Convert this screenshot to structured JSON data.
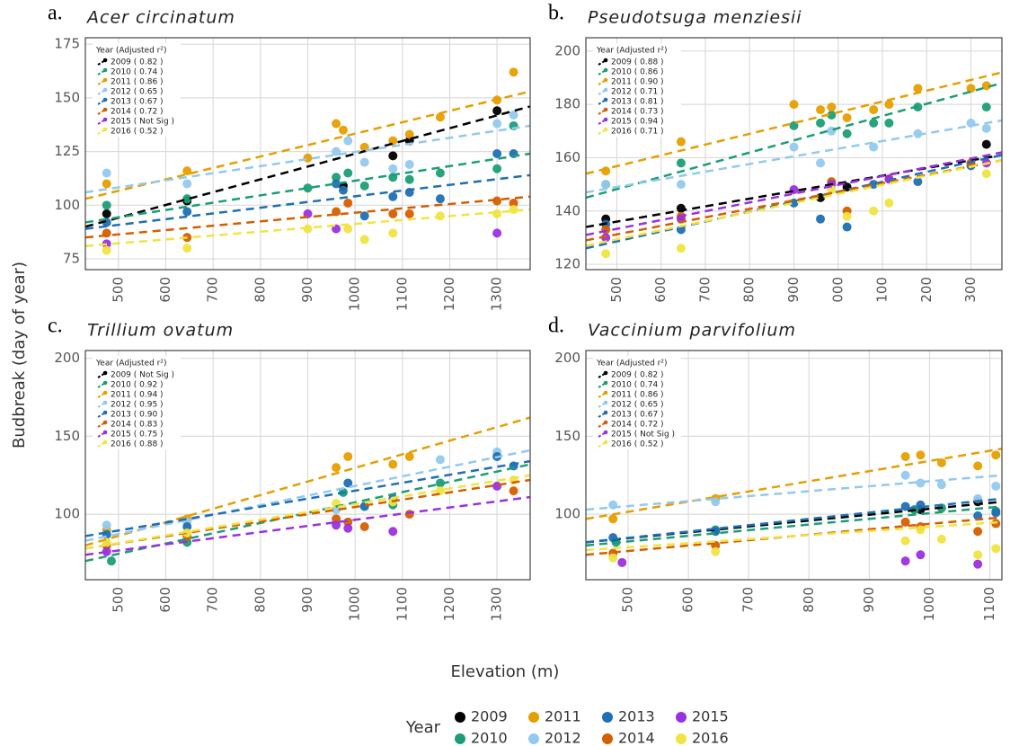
{
  "y_label": "Budbreak (day of year)",
  "x_label": "Elevation (m)",
  "legend": {
    "title": "Year",
    "items": [
      {
        "name": "2009",
        "color": "#000000"
      },
      {
        "name": "2010",
        "color": "#1b9e77"
      },
      {
        "name": "2011",
        "color": "#e69f00"
      },
      {
        "name": "2012",
        "color": "#93c9ee"
      },
      {
        "name": "2013",
        "color": "#1f6fb4"
      },
      {
        "name": "2014",
        "color": "#d55e00"
      },
      {
        "name": "2015",
        "color": "#9b30e0"
      },
      {
        "name": "2016",
        "color": "#f0e442"
      }
    ]
  },
  "chart_data": [
    {
      "type": "scatter",
      "panel_label": "a.",
      "title": "Acer circinatum",
      "legend_title": "Year (Adjusted r²)",
      "xlim": [
        430,
        1370
      ],
      "xticks": [
        500,
        600,
        700,
        800,
        900,
        1000,
        1100,
        1200,
        1300
      ],
      "ylim": [
        70,
        178
      ],
      "yticks": [
        75,
        100,
        125,
        150,
        175
      ],
      "grid": true,
      "series": [
        {
          "name": "2009 ( 0.82 )",
          "color": "#000000",
          "x": [
            475,
            645,
            975,
            1080,
            1115,
            1300
          ],
          "values": [
            96,
            102,
            109,
            123,
            130,
            144
          ],
          "fit": [
            90,
            146
          ]
        },
        {
          "name": "2010 ( 0.74 )",
          "color": "#1b9e77",
          "x": [
            475,
            645,
            900,
            960,
            985,
            1020,
            1080,
            1115,
            1180,
            1300,
            1335
          ],
          "values": [
            100,
            103,
            108,
            113,
            115,
            109,
            113,
            112,
            115,
            117,
            137
          ],
          "fit": [
            92,
            124
          ]
        },
        {
          "name": "2011 ( 0.86 )",
          "color": "#e69f00",
          "x": [
            475,
            645,
            900,
            960,
            975,
            1020,
            1080,
            1115,
            1180,
            1300,
            1335
          ],
          "values": [
            110,
            116,
            122,
            138,
            135,
            127,
            130,
            133,
            141,
            149,
            162
          ],
          "fit": [
            103,
            153
          ]
        },
        {
          "name": "2012 ( 0.65 )",
          "color": "#93c9ee",
          "x": [
            475,
            645,
            960,
            985,
            1020,
            1080,
            1115,
            1300,
            1335
          ],
          "values": [
            115,
            110,
            125,
            130,
            120,
            117,
            119,
            138,
            142
          ],
          "fit": [
            106,
            137
          ]
        },
        {
          "name": "2013 ( 0.67 )",
          "color": "#1f6fb4",
          "x": [
            475,
            645,
            960,
            975,
            1020,
            1080,
            1115,
            1180,
            1300,
            1335
          ],
          "values": [
            92,
            97,
            110,
            107,
            95,
            104,
            106,
            103,
            124,
            124
          ],
          "fit": [
            89,
            114
          ]
        },
        {
          "name": "2014 ( 0.72 )",
          "color": "#d55e00",
          "x": [
            475,
            645,
            960,
            985,
            1080,
            1115,
            1300,
            1335
          ],
          "values": [
            87,
            85,
            97,
            101,
            96,
            96,
            102,
            101
          ],
          "fit": [
            85,
            104
          ]
        },
        {
          "name": "2015 ( Not Sig )",
          "color": "#9b30e0",
          "x": [
            475,
            900,
            960,
            1300
          ],
          "values": [
            82,
            96,
            89,
            87
          ],
          "fit": null
        },
        {
          "name": "2016 ( 0.52 )",
          "color": "#f0e442",
          "x": [
            475,
            645,
            900,
            985,
            1020,
            1080,
            1180,
            1300,
            1335
          ],
          "values": [
            79,
            80,
            89,
            89,
            84,
            87,
            95,
            96,
            98
          ],
          "fit": [
            81,
            98
          ]
        }
      ]
    },
    {
      "type": "scatter",
      "panel_label": "b.",
      "title": "Pseudotsuga menziesii",
      "legend_title": "Year (Adjusted r²)",
      "xlim": [
        430,
        1370
      ],
      "xticks": [
        500,
        600,
        700,
        800,
        900,
        {
          "value": 1000,
          "label": "000"
        },
        {
          "value": 1100,
          "label": "100"
        },
        {
          "value": 1200,
          "label": "200"
        },
        {
          "value": 1300,
          "label": "300"
        }
      ],
      "ylim": [
        118,
        205
      ],
      "yticks": [
        120,
        140,
        160,
        180,
        200
      ],
      "grid": true,
      "series": [
        {
          "name": "2009 ( 0.88 )",
          "color": "#000000",
          "x": [
            475,
            645,
            960,
            1020,
            1335
          ],
          "values": [
            137,
            141,
            145,
            149,
            165
          ],
          "fit": [
            134,
            161
          ]
        },
        {
          "name": "2010 ( 0.86 )",
          "color": "#1b9e77",
          "x": [
            475,
            645,
            900,
            960,
            985,
            1020,
            1080,
            1115,
            1180,
            1335
          ],
          "values": [
            150,
            158,
            172,
            173,
            176,
            169,
            173,
            173,
            179,
            179
          ],
          "fit": [
            145,
            188
          ]
        },
        {
          "name": "2011 ( 0.90 )",
          "color": "#e69f00",
          "x": [
            475,
            645,
            900,
            960,
            985,
            1020,
            1080,
            1115,
            1180,
            1300,
            1335
          ],
          "values": [
            155,
            166,
            180,
            178,
            179,
            175,
            178,
            180,
            186,
            186,
            187
          ],
          "fit": [
            154,
            192
          ]
        },
        {
          "name": "2012 ( 0.71 )",
          "color": "#93c9ee",
          "x": [
            475,
            645,
            900,
            960,
            985,
            1080,
            1180,
            1300,
            1335
          ],
          "values": [
            150,
            150,
            164,
            158,
            170,
            164,
            169,
            173,
            171
          ],
          "fit": [
            147,
            174
          ]
        },
        {
          "name": "2013 ( 0.81 )",
          "color": "#1f6fb4",
          "x": [
            475,
            645,
            900,
            960,
            1020,
            1080,
            1180,
            1300
          ],
          "values": [
            135,
            133,
            143,
            137,
            134,
            150,
            151,
            157
          ],
          "fit": [
            126,
            161
          ]
        },
        {
          "name": "2014 ( 0.73 )",
          "color": "#d55e00",
          "x": [
            475,
            645,
            985,
            1020,
            1115,
            1300
          ],
          "values": [
            133,
            138,
            151,
            140,
            152,
            158
          ],
          "fit": [
            129,
            159
          ]
        },
        {
          "name": "2015 ( 0.94 )",
          "color": "#9b30e0",
          "x": [
            475,
            645,
            900,
            985,
            1115,
            1335
          ],
          "values": [
            130,
            137,
            148,
            150,
            152,
            158
          ],
          "fit": [
            131,
            162
          ]
        },
        {
          "name": "2016 ( 0.71 )",
          "color": "#f0e442",
          "x": [
            475,
            645,
            985,
            1020,
            1080,
            1115,
            1335
          ],
          "values": [
            124,
            126,
            148,
            138,
            140,
            143,
            154
          ],
          "fit": [
            127,
            159
          ]
        }
      ]
    },
    {
      "type": "scatter",
      "panel_label": "c.",
      "title": "Trillium ovatum",
      "legend_title": "Year (Adjusted r²)",
      "xlim": [
        430,
        1370
      ],
      "xticks": [
        500,
        600,
        700,
        800,
        900,
        1000,
        1100,
        1200,
        1300
      ],
      "ylim": [
        58,
        205
      ],
      "yticks": [
        100,
        150,
        200
      ],
      "grid": true,
      "series": [
        {
          "name": "2009 ( Not Sig )",
          "color": "#000000",
          "x": [],
          "values": [],
          "fit": null
        },
        {
          "name": "2010 ( 0.92 )",
          "color": "#1b9e77",
          "x": [
            485,
            645,
            975,
            1080,
            1180
          ],
          "values": [
            70,
            82,
            114,
            106,
            120
          ],
          "fit": [
            70,
            132
          ]
        },
        {
          "name": "2011 ( 0.94 )",
          "color": "#e69f00",
          "x": [
            475,
            645,
            960,
            985,
            1080,
            1115
          ],
          "values": [
            90,
            97,
            130,
            137,
            132,
            137
          ],
          "fit": [
            80,
            162
          ]
        },
        {
          "name": "2012 ( 0.95 )",
          "color": "#93c9ee",
          "x": [
            475,
            645,
            960,
            1020,
            1180,
            1300
          ],
          "values": [
            93,
            95,
            103,
            105,
            135,
            140
          ],
          "fit": [
            83,
            141
          ]
        },
        {
          "name": "2013 ( 0.90 )",
          "color": "#1f6fb4",
          "x": [
            475,
            645,
            985,
            1020,
            1080,
            1300,
            1335
          ],
          "values": [
            87,
            92,
            120,
            105,
            110,
            137,
            131
          ],
          "fit": [
            86,
            134
          ]
        },
        {
          "name": "2014 ( 0.83 )",
          "color": "#d55e00",
          "x": [
            475,
            645,
            960,
            985,
            1020,
            1115,
            1335
          ],
          "values": [
            80,
            86,
            97,
            95,
            92,
            100,
            115
          ],
          "fit": [
            78,
            122
          ]
        },
        {
          "name": "2015 ( 0.75 )",
          "color": "#9b30e0",
          "x": [
            475,
            960,
            985,
            1080,
            1300
          ],
          "values": [
            76,
            93,
            91,
            89,
            118
          ],
          "fit": [
            74,
            111
          ]
        },
        {
          "name": "2016 ( 0.88 )",
          "color": "#f0e442",
          "x": [
            475,
            645,
            960,
            1080,
            1180,
            1335
          ],
          "values": [
            82,
            88,
            107,
            108,
            115,
            122
          ],
          "fit": [
            78,
            125
          ]
        }
      ]
    },
    {
      "type": "scatter",
      "panel_label": "d.",
      "title": "Vaccinium parvifolium",
      "legend_title": "Year (Adjusted r²)",
      "xlim": [
        430,
        1120
      ],
      "xticks": [
        500,
        600,
        700,
        800,
        900,
        1000,
        1100
      ],
      "ylim": [
        58,
        205
      ],
      "yticks": [
        100,
        150,
        200
      ],
      "grid": true,
      "series": [
        {
          "name": "2009 ( 0.82 )",
          "color": "#000000",
          "x": [
            985,
            1080
          ],
          "values": [
            103,
            108
          ],
          "fit": [
            82,
            108
          ]
        },
        {
          "name": "2010 ( 0.74 )",
          "color": "#1b9e77",
          "x": [
            480,
            645,
            975,
            1020,
            1110
          ],
          "values": [
            82,
            90,
            103,
            104,
            102
          ],
          "fit": [
            80,
            105
          ]
        },
        {
          "name": "2011 ( 0.86 )",
          "color": "#e69f00",
          "x": [
            475,
            645,
            960,
            985,
            1020,
            1080,
            1110
          ],
          "values": [
            97,
            110,
            137,
            138,
            133,
            131,
            138
          ],
          "fit": [
            97,
            142
          ]
        },
        {
          "name": "2012 ( 0.65 )",
          "color": "#93c9ee",
          "x": [
            475,
            645,
            960,
            985,
            1020,
            1080,
            1110
          ],
          "values": [
            106,
            108,
            125,
            120,
            119,
            110,
            118
          ],
          "fit": [
            103,
            125
          ]
        },
        {
          "name": "2013 ( 0.67 )",
          "color": "#1f6fb4",
          "x": [
            475,
            645,
            960,
            985,
            1080,
            1110
          ],
          "values": [
            85,
            89,
            105,
            106,
            99,
            101
          ],
          "fit": [
            82,
            110
          ]
        },
        {
          "name": "2014 ( 0.72 )",
          "color": "#d55e00",
          "x": [
            475,
            645,
            960,
            985,
            1080,
            1110
          ],
          "values": [
            75,
            80,
            95,
            92,
            89,
            94
          ],
          "fit": [
            74,
            98
          ]
        },
        {
          "name": "2015 ( Not Sig )",
          "color": "#9b30e0",
          "x": [
            490,
            960,
            985,
            1080
          ],
          "values": [
            69,
            70,
            74,
            68
          ],
          "fit": null
        },
        {
          "name": "2016 ( 0.52 )",
          "color": "#f0e442",
          "x": [
            475,
            645,
            960,
            985,
            1020,
            1080,
            1110
          ],
          "values": [
            72,
            76,
            83,
            90,
            84,
            74,
            78
          ],
          "fit": [
            77,
            95
          ]
        }
      ]
    }
  ]
}
